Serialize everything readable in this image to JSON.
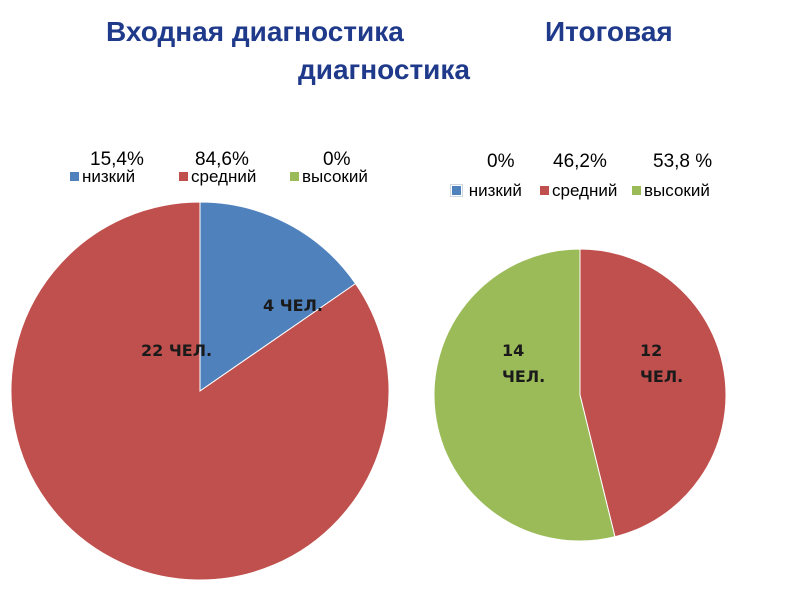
{
  "title": {
    "part1": "Входная диагностика",
    "part2": "Итоговая",
    "part3": "диагностика"
  },
  "chart_data": [
    {
      "type": "pie",
      "title": "Входная диагностика",
      "categories": [
        "низкий",
        "средний",
        "высокий"
      ],
      "values": [
        4,
        22,
        0
      ],
      "percent_labels": [
        "15,4%",
        "84,6%",
        "0%"
      ],
      "slice_labels": [
        "4 ЧЕЛ.",
        "22 ЧЕЛ.",
        ""
      ],
      "colors": [
        "#4f81bd",
        "#c0504d",
        "#9bbb59"
      ],
      "legend_position": "top"
    },
    {
      "type": "pie",
      "title": "Итоговая диагностика",
      "categories": [
        "низкий",
        "средний",
        "высокий"
      ],
      "values": [
        0,
        12,
        14
      ],
      "percent_labels": [
        "0%",
        "46,2%",
        "53,8 %"
      ],
      "slice_labels": [
        "",
        "12\nЧЕЛ.",
        "14\nЧЕЛ."
      ],
      "colors": [
        "#4f81bd",
        "#c0504d",
        "#9bbb59"
      ],
      "legend_position": "top"
    }
  ]
}
